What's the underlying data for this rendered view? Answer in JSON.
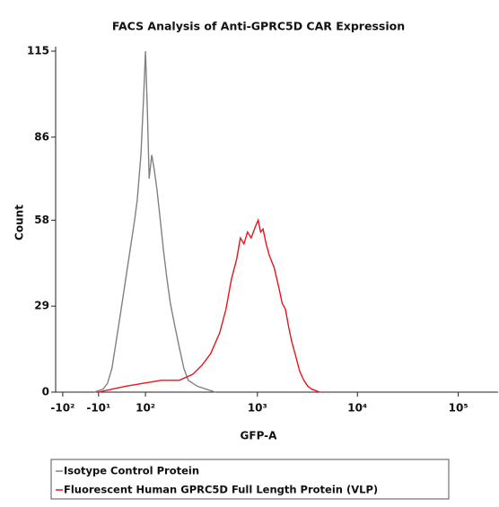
{
  "chart_data": {
    "type": "line",
    "title": "FACS Analysis of Anti-GPRC5D CAR Expression",
    "x_label": "GFP-A",
    "y_label": "Count",
    "xscale": "biexponential",
    "xlim": [
      -120,
      250000
    ],
    "xticks": [
      {
        "value": -100,
        "label": "-10²"
      },
      {
        "value": -10,
        "label": "-10¹"
      },
      {
        "value": 100,
        "label": "10²"
      },
      {
        "value": 1000,
        "label": "10³"
      },
      {
        "value": 10000,
        "label": "10⁴"
      },
      {
        "value": 100000,
        "label": "10⁵"
      }
    ],
    "ylim": [
      0,
      115
    ],
    "yticks": [
      0,
      29,
      58,
      86,
      115
    ],
    "legend": "bottom",
    "series": [
      {
        "name": "Isotype Control Protein",
        "color": "#808080",
        "x": [
          -13.4,
          -4.6,
          -1.9,
          -0.5,
          0.35,
          1.65,
          4.2,
          9.2,
          19,
          29,
          50,
          76,
          100,
          104,
          108,
          114,
          120,
          127,
          134,
          145,
          156,
          167,
          184,
          201,
          221,
          242,
          291,
          350,
          421
        ],
        "values": [
          0,
          1,
          3,
          8,
          18,
          28,
          38,
          48,
          58,
          65,
          80,
          100,
          115,
          95,
          72,
          80,
          75,
          68,
          60,
          48,
          38,
          30,
          22,
          15,
          8,
          4,
          2,
          1,
          0
        ]
      },
      {
        "name": "Fluorescent Human GPRC5D Full Length Protein (VLP)",
        "color": "#e8141c",
        "x": [
          -10,
          -0.5,
          4.2,
          76,
          139,
          201,
          265,
          319,
          384,
          461,
          525,
          586,
          655,
          705,
          759,
          817,
          879,
          964,
          1019,
          1076,
          1138,
          1225,
          1318,
          1472,
          1644,
          1770,
          1905,
          2051,
          2208,
          2421,
          2655,
          2911,
          3192,
          3499,
          4207
        ],
        "values": [
          0,
          1,
          2,
          3,
          4,
          4,
          6,
          9,
          13,
          20,
          28,
          38,
          45,
          52,
          50,
          54,
          52,
          56,
          58,
          54,
          55,
          50,
          46,
          42,
          35,
          30,
          28,
          22,
          17,
          12,
          7,
          4,
          2,
          1,
          0
        ]
      }
    ]
  }
}
